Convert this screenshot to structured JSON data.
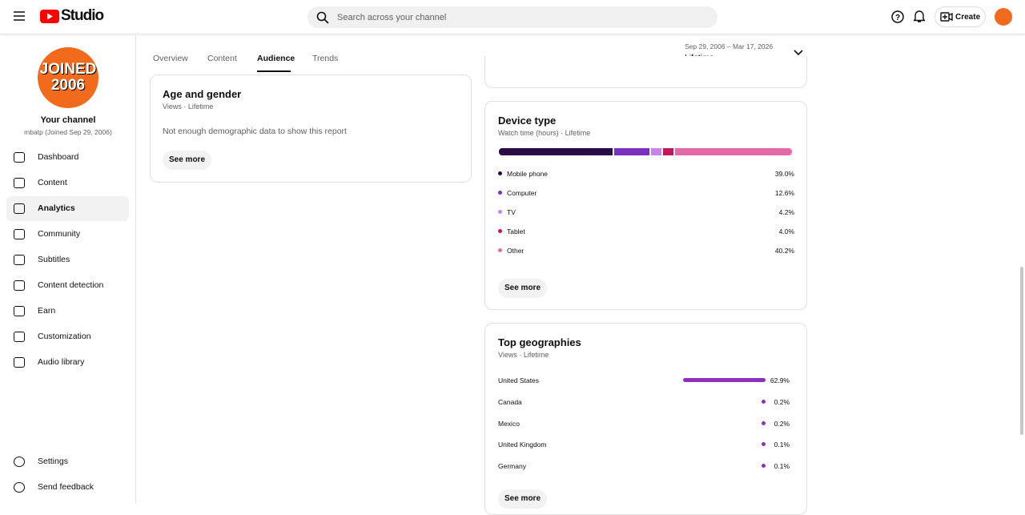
{
  "header": {
    "logo": "Studio",
    "search_placeholder": "Search across your channel",
    "create": "Create"
  },
  "sidebar": {
    "avatar_lines": [
      "JOINED",
      "2006"
    ],
    "channel_title": "Your channel",
    "channel_subtitle": "mbatp (Joined Sep 29, 2006)",
    "nav": [
      "Dashboard",
      "Content",
      "Analytics",
      "Community",
      "Subtitles",
      "Content detection",
      "Earn",
      "Customization",
      "Audio library"
    ],
    "footer": [
      "Settings",
      "Send feedback"
    ]
  },
  "tabs": [
    "Overview",
    "Content",
    "Audience",
    "Trends"
  ],
  "date_range": {
    "range": "Sep 29, 2006 – Mar 17, 2026",
    "label": "Lifetime"
  },
  "age_gender": {
    "title": "Age and gender",
    "subtitle": "Views · Lifetime",
    "message": "Not enough demographic data to show this report",
    "button": "See more"
  },
  "device_type": {
    "title": "Device type",
    "subtitle": "Watch time (hours) · Lifetime",
    "categories": [
      "Mobile phone",
      "Computer",
      "TV",
      "Tablet",
      "Other"
    ],
    "values": [
      39.0,
      12.6,
      4.2,
      4.0,
      40.2
    ],
    "value_labels": [
      "39.0%",
      "12.6%",
      "4.2%",
      "4.0%",
      "40.2%"
    ],
    "colors": [
      "#2b0b47",
      "#7b2fbf",
      "#c784ef",
      "#c2185b",
      "#e46aa6"
    ],
    "button": "See more"
  },
  "top_geographies": {
    "title": "Top geographies",
    "subtitle": "Views · Lifetime",
    "categories": [
      "United States",
      "Canada",
      "Mexico",
      "United Kingdom",
      "Germany"
    ],
    "values": [
      62.9,
      0.2,
      0.2,
      0.1,
      0.1
    ],
    "value_labels": [
      "62.9%",
      "0.2%",
      "0.2%",
      "0.1%",
      "0.1%"
    ],
    "color": "#8e2fc0",
    "button": "See more"
  }
}
